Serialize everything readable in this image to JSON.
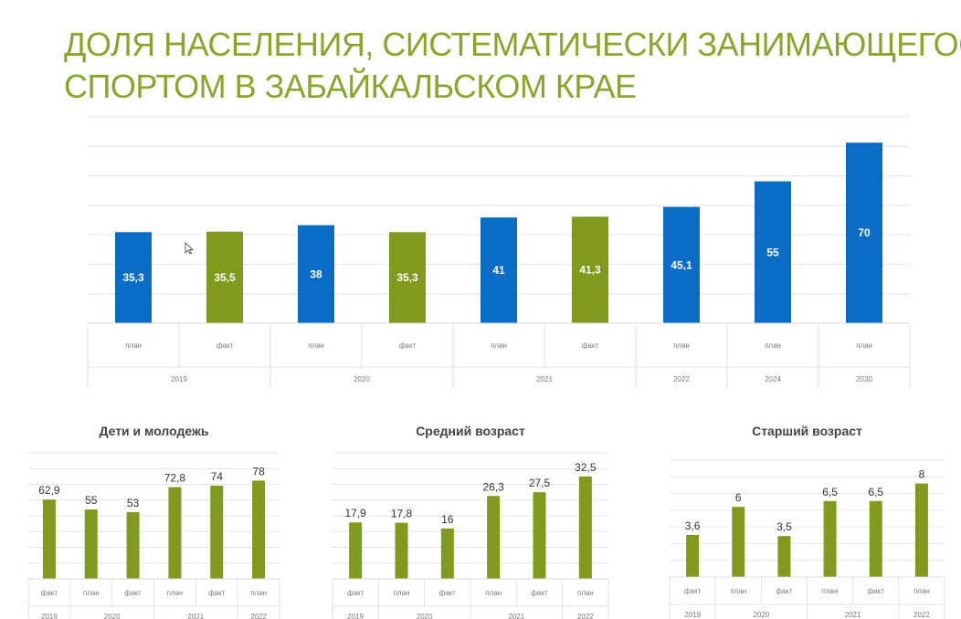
{
  "title_lines": [
    "ДОЛЯ НАСЕЛЕНИЯ, СИСТЕМАТИЧЕСКИ ЗАНИМАЮЩЕГОСЯ",
    "СПОРТОМ В ЗАБАЙКАЛЬСКОМ КРАЕ"
  ],
  "colors": {
    "title": "#8aa52c",
    "plan": "#0a6cc4",
    "fact": "#7f9a1c",
    "grid": "#e4e4e4",
    "axis_text": "#7a7a7a",
    "label_dark": "#333333"
  },
  "chart_data": [
    {
      "type": "bar",
      "title": "",
      "categories": [
        "план",
        "факт",
        "план",
        "факт",
        "план",
        "факт",
        "план",
        "план",
        "план"
      ],
      "groups": [
        {
          "label": "2019",
          "span": 2
        },
        {
          "label": "2020",
          "span": 2
        },
        {
          "label": "2021",
          "span": 2
        },
        {
          "label": "2022",
          "span": 1
        },
        {
          "label": "2024",
          "span": 1
        },
        {
          "label": "2030",
          "span": 1
        }
      ],
      "values": [
        35.3,
        35.5,
        38,
        35.3,
        41,
        41.3,
        45.1,
        55,
        70
      ],
      "value_labels": [
        "35,3",
        "35,5",
        "38",
        "35,3",
        "41",
        "41,3",
        "45,1",
        "55",
        "70"
      ],
      "bar_colors": [
        "plan",
        "fact",
        "plan",
        "fact",
        "plan",
        "fact",
        "plan",
        "plan",
        "plan"
      ],
      "ylim": [
        0,
        80
      ],
      "grid": true,
      "data_labels": "inside"
    },
    {
      "type": "bar",
      "title": "Дети и молодежь",
      "categories": [
        "факт",
        "план",
        "факт",
        "план",
        "факт",
        "план"
      ],
      "groups": [
        {
          "label": "2019",
          "span": 1
        },
        {
          "label": "2020",
          "span": 2
        },
        {
          "label": "2021",
          "span": 2
        },
        {
          "label": "2022",
          "span": 1
        }
      ],
      "values": [
        62.9,
        55,
        53,
        72.8,
        74,
        78
      ],
      "value_labels": [
        "62,9",
        "55",
        "53",
        "72,8",
        "74",
        "78"
      ],
      "ylim": [
        0,
        100
      ],
      "grid": true,
      "data_labels": "above"
    },
    {
      "type": "bar",
      "title": "Средний возраст",
      "categories": [
        "факт",
        "план",
        "факт",
        "план",
        "факт",
        "план"
      ],
      "groups": [
        {
          "label": "2019",
          "span": 1
        },
        {
          "label": "2020",
          "span": 2
        },
        {
          "label": "2021",
          "span": 2
        },
        {
          "label": "2022",
          "span": 1
        }
      ],
      "values": [
        17.9,
        17.8,
        16,
        26.3,
        27.5,
        32.5
      ],
      "value_labels": [
        "17,9",
        "17,8",
        "16",
        "26,3",
        "27,5",
        "32,5"
      ],
      "ylim": [
        0,
        40
      ],
      "grid": true,
      "data_labels": "above"
    },
    {
      "type": "bar",
      "title": "Старший возраст",
      "categories": [
        "факт",
        "план",
        "факт",
        "план",
        "факт",
        "план"
      ],
      "groups": [
        {
          "label": "2019",
          "span": 1
        },
        {
          "label": "2020",
          "span": 2
        },
        {
          "label": "2021",
          "span": 2
        },
        {
          "label": "2022",
          "span": 1
        }
      ],
      "values": [
        3.6,
        6,
        3.5,
        6.5,
        6.5,
        8
      ],
      "value_labels": [
        "3,6",
        "6",
        "3,5",
        "6,5",
        "6,5",
        "8"
      ],
      "ylim": [
        0,
        10
      ],
      "grid": true,
      "data_labels": "above"
    }
  ]
}
